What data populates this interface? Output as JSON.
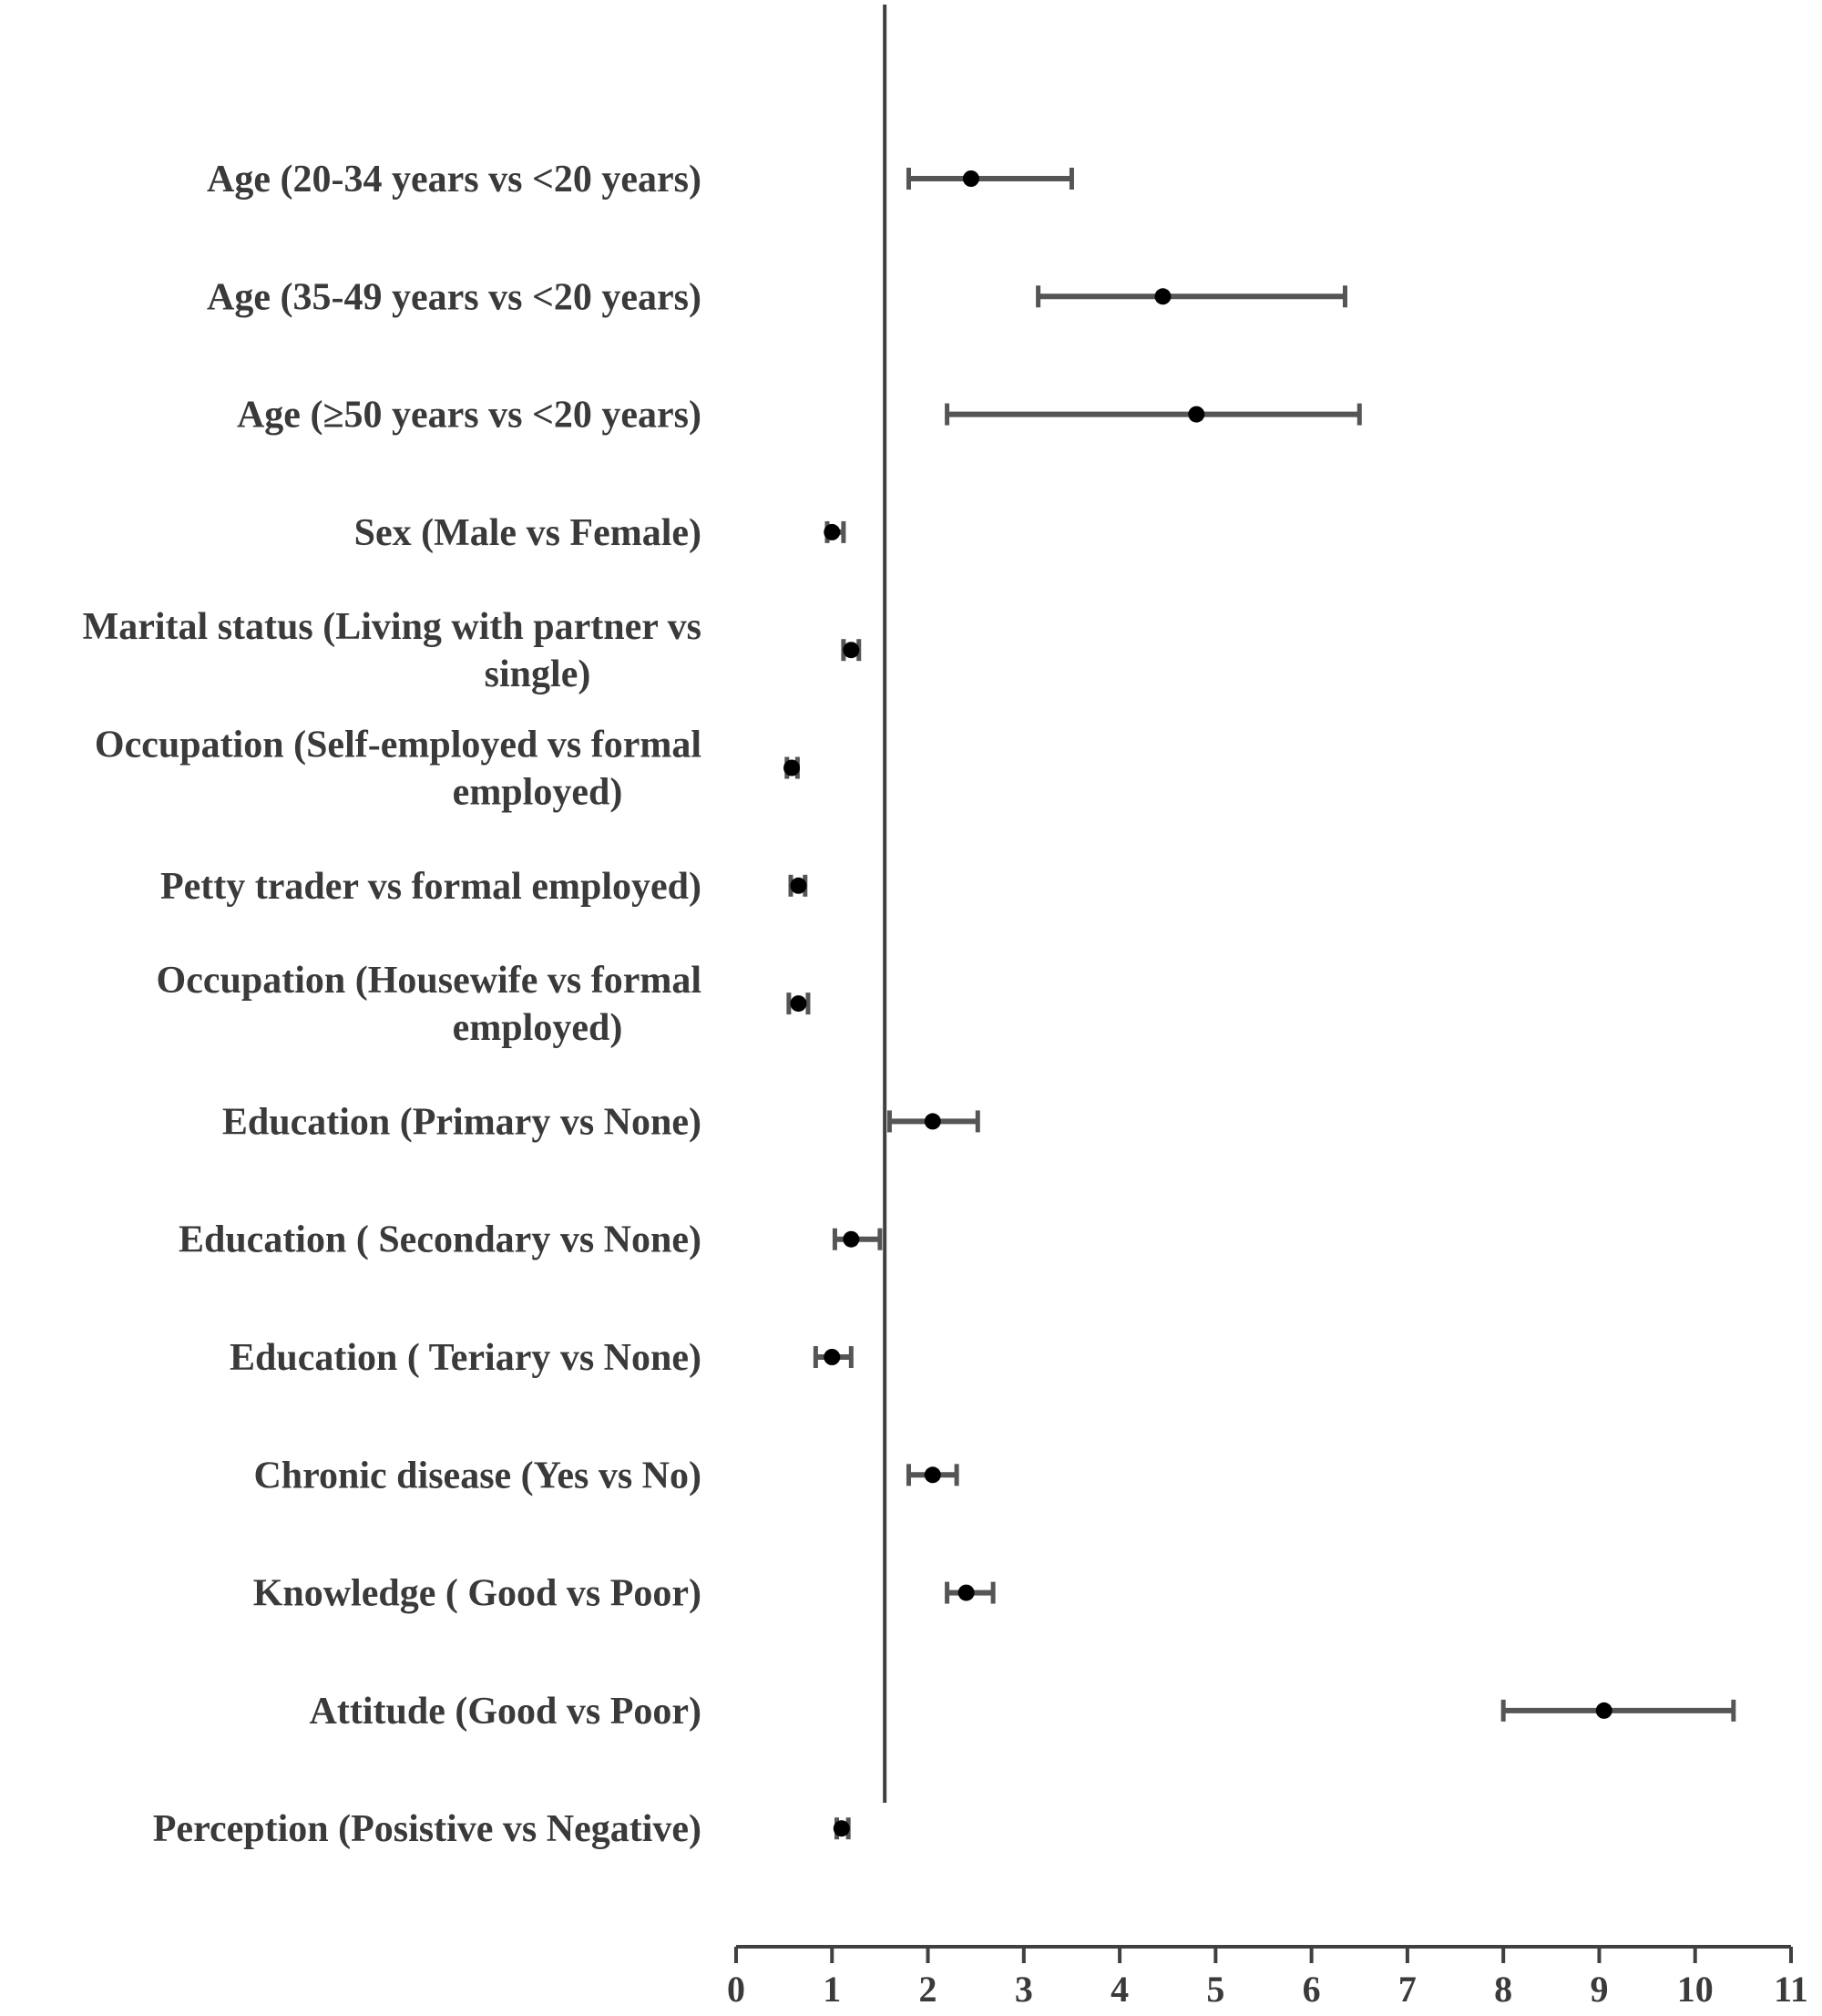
{
  "chart_data": {
    "type": "forest",
    "title": "",
    "xlabel": "",
    "ylabel": "",
    "xlim": [
      0,
      11
    ],
    "x_ticks": [
      0,
      1,
      2,
      3,
      4,
      5,
      6,
      7,
      8,
      9,
      10,
      11
    ],
    "reference_line": 1.55,
    "grid": false,
    "rows": [
      {
        "label_lines": [
          "Age (20-34 years vs <20 years)"
        ],
        "estimate": 2.45,
        "lower": 1.8,
        "upper": 3.5
      },
      {
        "label_lines": [
          "Age (35-49 years vs <20 years)"
        ],
        "estimate": 4.45,
        "lower": 3.15,
        "upper": 6.35
      },
      {
        "label_lines": [
          "Age (≥50 years  vs <20 years)"
        ],
        "estimate": 4.8,
        "lower": 2.2,
        "upper": 6.5
      },
      {
        "label_lines": [
          "Sex (Male vs Female)"
        ],
        "estimate": 1.0,
        "lower": 0.95,
        "upper": 1.12
      },
      {
        "label_lines": [
          "Marital status (Living with partner vs",
          "single)"
        ],
        "estimate": 1.2,
        "lower": 1.12,
        "upper": 1.28
      },
      {
        "label_lines": [
          "Occupation (Self-employed vs formal",
          "employed)"
        ],
        "estimate": 0.58,
        "lower": 0.53,
        "upper": 0.64
      },
      {
        "label_lines": [
          "Petty trader vs formal employed)"
        ],
        "estimate": 0.65,
        "lower": 0.57,
        "upper": 0.72
      },
      {
        "label_lines": [
          "Occupation (Housewife vs formal",
          "employed)"
        ],
        "estimate": 0.65,
        "lower": 0.55,
        "upper": 0.75
      },
      {
        "label_lines": [
          "Education (Primary vs None)"
        ],
        "estimate": 2.05,
        "lower": 1.6,
        "upper": 2.52
      },
      {
        "label_lines": [
          "Education ( Secondary vs None)"
        ],
        "estimate": 1.2,
        "lower": 1.03,
        "upper": 1.5
      },
      {
        "label_lines": [
          "Education ( Teriary vs None)"
        ],
        "estimate": 1.0,
        "lower": 0.83,
        "upper": 1.2
      },
      {
        "label_lines": [
          "Chronic disease (Yes vs No)"
        ],
        "estimate": 2.05,
        "lower": 1.8,
        "upper": 2.3
      },
      {
        "label_lines": [
          "Knowledge ( Good vs Poor)"
        ],
        "estimate": 2.4,
        "lower": 2.2,
        "upper": 2.68
      },
      {
        "label_lines": [
          "Attitude (Good vs Poor)"
        ],
        "estimate": 9.05,
        "lower": 8.0,
        "upper": 10.4
      },
      {
        "label_lines": [
          "Perception (Posistive vs Negative)"
        ],
        "estimate": 1.1,
        "lower": 1.05,
        "upper": 1.17
      }
    ]
  },
  "colors": {
    "marker": "#000000",
    "whisker": "#555555",
    "axis": "#404040",
    "text": "#3a3a3a"
  }
}
